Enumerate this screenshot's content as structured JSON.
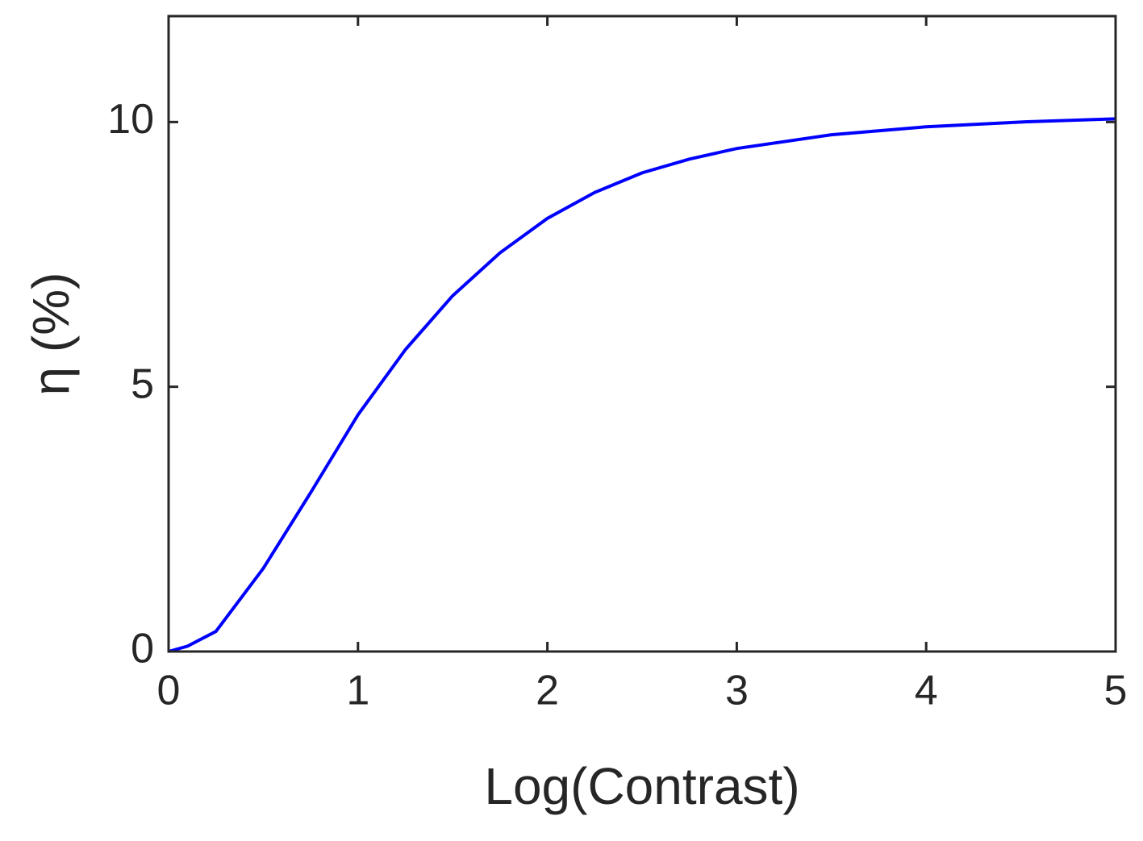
{
  "chart_data": {
    "type": "line",
    "x_label": "Log(Contrast)",
    "y_label": "η (%)",
    "x": [
      0,
      0.1,
      0.25,
      0.5,
      0.75,
      1.0,
      1.25,
      1.5,
      1.75,
      2.0,
      2.25,
      2.5,
      2.75,
      3.0,
      3.5,
      4.0,
      4.5,
      5.0
    ],
    "series": [
      {
        "color": "#0000ff",
        "values": [
          0,
          0.1,
          0.38,
          1.57,
          3.0,
          4.47,
          5.7,
          6.72,
          7.53,
          8.18,
          8.67,
          9.04,
          9.3,
          9.5,
          9.76,
          9.91,
          10.0,
          10.06
        ]
      }
    ],
    "xlim": [
      0,
      5
    ],
    "ylim": [
      0,
      12
    ],
    "xticks": [
      0,
      1,
      2,
      3,
      4,
      5
    ],
    "yticks": [
      0,
      5,
      10
    ]
  }
}
